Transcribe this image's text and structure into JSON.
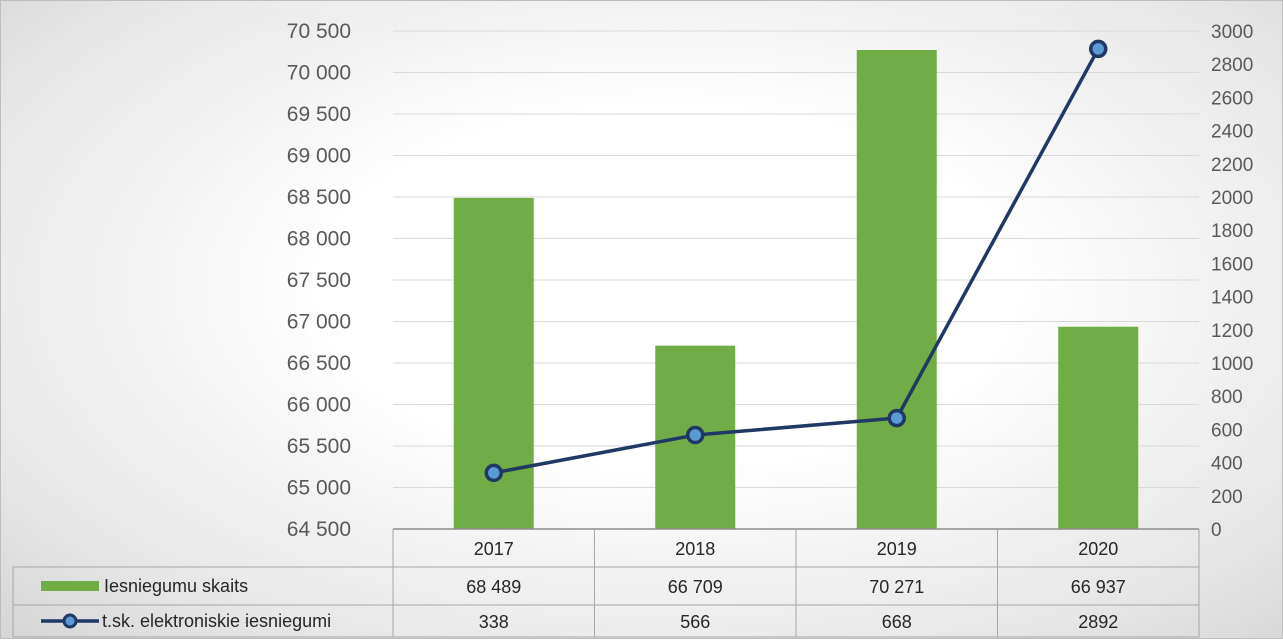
{
  "chart_data": {
    "type": "bar",
    "categories": [
      "2017",
      "2018",
      "2019",
      "2020"
    ],
    "series": [
      {
        "name": "Iesniegumu skaits",
        "type": "bar",
        "axis": "left",
        "color": "#70AD47",
        "values": [
          68489,
          66709,
          70271,
          66937
        ],
        "labels": [
          "68 489",
          "66 709",
          "70 271",
          "66 937"
        ]
      },
      {
        "name": "t.sk. elektroniskie iesniegumi",
        "type": "line",
        "axis": "right",
        "color": "#1F3864",
        "marker_fill": "#5B9BD5",
        "values": [
          338,
          566,
          668,
          2892
        ],
        "labels": [
          "338",
          "566",
          "668",
          "2892"
        ]
      }
    ],
    "y_left": {
      "ylim": [
        64500,
        70500
      ],
      "ticks": [
        64500,
        65000,
        65500,
        66000,
        66500,
        67000,
        67500,
        68000,
        68500,
        69000,
        69500,
        70000,
        70500
      ],
      "tick_labels": [
        "64 500",
        "65 000",
        "65 500",
        "66 000",
        "66 500",
        "67 000",
        "67 500",
        "68 000",
        "68 500",
        "69 000",
        "69 500",
        "70 000",
        "70 500"
      ]
    },
    "y_right": {
      "ylim": [
        0,
        3000
      ],
      "ticks": [
        0,
        200,
        400,
        600,
        800,
        1000,
        1200,
        1400,
        1600,
        1800,
        2000,
        2200,
        2400,
        2600,
        2800,
        3000
      ],
      "tick_labels": [
        "0",
        "200",
        "400",
        "600",
        "800",
        "1000",
        "1200",
        "1400",
        "1600",
        "1800",
        "2000",
        "2200",
        "2400",
        "2600",
        "2800",
        "3000"
      ]
    },
    "grid": true,
    "data_table": true
  }
}
